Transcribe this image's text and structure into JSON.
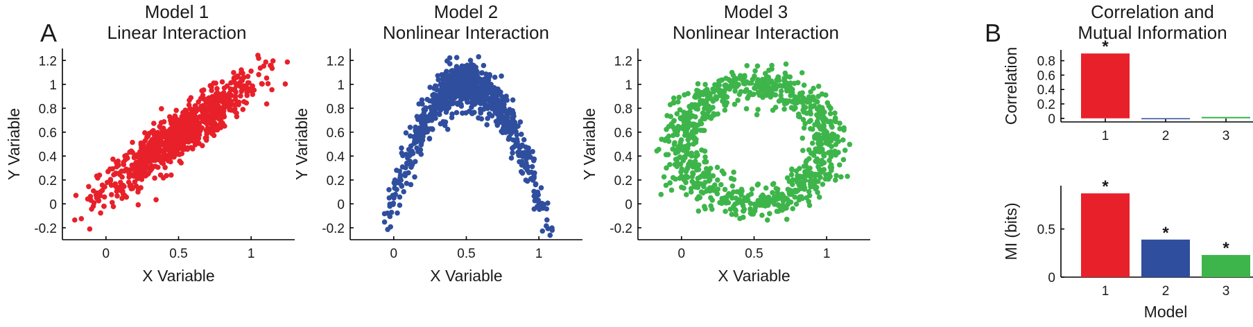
{
  "panels": {
    "a": "A",
    "b": "B"
  },
  "chart_data": [
    {
      "type": "scatter",
      "title_lines": [
        "Model 1",
        "Linear Interaction"
      ],
      "xlabel": "X Variable",
      "ylabel": "Y Variable",
      "xlim": [
        -0.3,
        1.3
      ],
      "ylim": [
        -0.3,
        1.3
      ],
      "xticks": [
        0,
        0.5,
        1
      ],
      "yticks": [
        -0.2,
        0,
        0.2,
        0.4,
        0.6,
        0.8,
        1,
        1.2
      ],
      "color": "#e8202a",
      "grid": false,
      "series": [
        {
          "description_pattern": "linear",
          "n_points": 900
        }
      ]
    },
    {
      "type": "scatter",
      "title_lines": [
        "Model 2",
        "Nonlinear Interaction"
      ],
      "xlabel": "X Variable",
      "ylabel": "Y Variable",
      "xlim": [
        -0.3,
        1.3
      ],
      "ylim": [
        -0.3,
        1.3
      ],
      "xticks": [
        0,
        0.5,
        1
      ],
      "yticks": [
        -0.2,
        0,
        0.2,
        0.4,
        0.6,
        0.8,
        1,
        1.2
      ],
      "color": "#2f4e9e",
      "grid": false,
      "series": [
        {
          "description_pattern": "parabola",
          "n_points": 900
        }
      ]
    },
    {
      "type": "scatter",
      "title_lines": [
        "Model 3",
        "Nonlinear Interaction"
      ],
      "xlabel": "X Variable",
      "ylabel": "Y Variable",
      "xlim": [
        -0.3,
        1.3
      ],
      "ylim": [
        -0.3,
        1.3
      ],
      "xticks": [
        0,
        0.5,
        1
      ],
      "yticks": [
        -0.2,
        0,
        0.2,
        0.4,
        0.6,
        0.8,
        1,
        1.2
      ],
      "color": "#3db54a",
      "grid": false,
      "series": [
        {
          "description_pattern": "ring",
          "n_points": 900
        }
      ]
    },
    {
      "type": "bar",
      "title_lines": [
        "Correlation and",
        "Mutual Information"
      ],
      "xlabel": "",
      "ylabel": "Correlation",
      "categories": [
        "1",
        "2",
        "3"
      ],
      "values": [
        0.9,
        0.0,
        0.02
      ],
      "ylim": [
        -0.05,
        0.95
      ],
      "yticks": [
        0,
        0.2,
        0.4,
        0.6,
        0.8
      ],
      "colors": [
        "#e8202a",
        "#2f4e9e",
        "#3db54a"
      ],
      "significant": [
        true,
        false,
        false
      ],
      "significance_marker": "*"
    },
    {
      "type": "bar",
      "xlabel": "Model",
      "ylabel": "MI (bits)",
      "categories": [
        "1",
        "2",
        "3"
      ],
      "values": [
        0.87,
        0.39,
        0.23
      ],
      "ylim": [
        0,
        0.95
      ],
      "yticks": [
        0,
        0.5
      ],
      "colors": [
        "#e8202a",
        "#2f4e9e",
        "#3db54a"
      ],
      "significant": [
        true,
        true,
        true
      ],
      "significance_marker": "*"
    }
  ]
}
